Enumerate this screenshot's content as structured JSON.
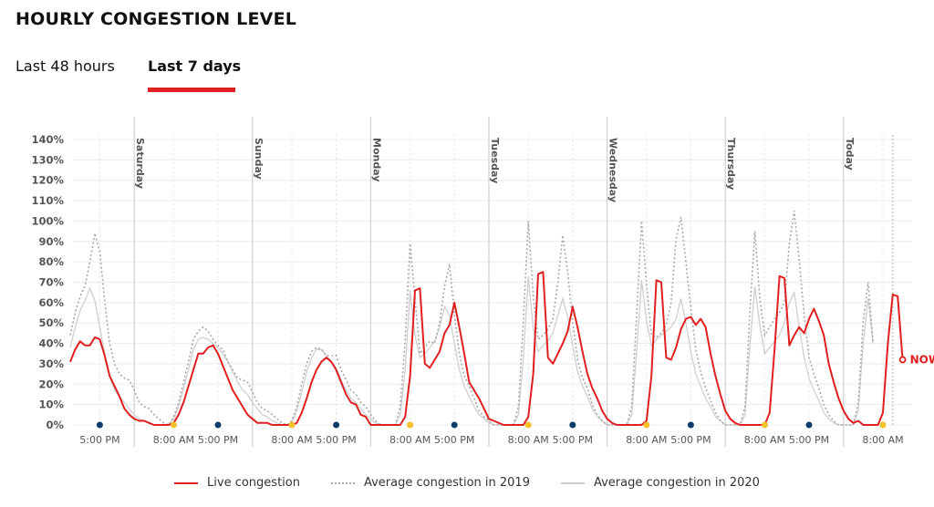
{
  "header": {
    "title": "HOURLY CONGESTION LEVEL"
  },
  "tabs": [
    {
      "label": "Last 48 hours",
      "selected": false
    },
    {
      "label": "Last 7 days",
      "selected": true
    }
  ],
  "colors": {
    "accent": "#e01f1f",
    "avg2019": "#a8a8a8",
    "avg2020": "#cfcfcf",
    "grid": "#ececec",
    "day_divider": "#d0d0d0",
    "morning_dot": "#f5c028",
    "evening_dot": "#0b3d6b"
  },
  "now_label": "NOW",
  "chart_data": {
    "type": "line",
    "title": "HOURLY CONGESTION LEVEL",
    "xlabel": "",
    "ylabel": "",
    "ylim": [
      0,
      140
    ],
    "y_ticks": [
      "0%",
      "10%",
      "20%",
      "30%",
      "40%",
      "50%",
      "60%",
      "70%",
      "80%",
      "90%",
      "100%",
      "110%",
      "120%",
      "130%",
      "140%"
    ],
    "x_unit": "hours since Friday 11:00",
    "x_range": [
      0,
      171
    ],
    "grid": true,
    "legend_position": "bottom-center",
    "day_dividers": [
      {
        "label": "Saturday",
        "hour": 13
      },
      {
        "label": "Sunday",
        "hour": 37
      },
      {
        "label": "Monday",
        "hour": 61
      },
      {
        "label": "Tuesday",
        "hour": 85
      },
      {
        "label": "Wednesday",
        "hour": 109
      },
      {
        "label": "Thursday",
        "hour": 133
      },
      {
        "label": "Today",
        "hour": 157
      }
    ],
    "x_tick_labels": [
      {
        "label": "5:00 PM",
        "hour": 6,
        "marker": "evening"
      },
      {
        "label": "8:00 AM",
        "hour": 21,
        "marker": "morning"
      },
      {
        "label": "5:00 PM",
        "hour": 30,
        "marker": "evening"
      },
      {
        "label": "8:00 AM",
        "hour": 45,
        "marker": "morning"
      },
      {
        "label": "5:00 PM",
        "hour": 54,
        "marker": "evening"
      },
      {
        "label": "8:00 AM",
        "hour": 69,
        "marker": "morning"
      },
      {
        "label": "5:00 PM",
        "hour": 78,
        "marker": "evening"
      },
      {
        "label": "8:00 AM",
        "hour": 93,
        "marker": "morning"
      },
      {
        "label": "5:00 PM",
        "hour": 102,
        "marker": "evening"
      },
      {
        "label": "8:00 AM",
        "hour": 117,
        "marker": "morning"
      },
      {
        "label": "5:00 PM",
        "hour": 126,
        "marker": "evening"
      },
      {
        "label": "8:00 AM",
        "hour": 141,
        "marker": "morning"
      },
      {
        "label": "5:00 PM",
        "hour": 150,
        "marker": "evening"
      },
      {
        "label": "8:00 AM",
        "hour": 165,
        "marker": "morning"
      }
    ],
    "now_hour": 167,
    "series": [
      {
        "name": "Live congestion",
        "key": "live",
        "values": [
          31,
          37,
          41,
          39,
          39,
          43,
          42,
          34,
          24,
          19,
          14,
          8,
          5,
          3,
          2,
          2,
          1,
          0,
          0,
          0,
          0,
          1,
          5,
          11,
          19,
          27,
          35,
          35,
          38,
          39,
          35,
          29,
          23,
          17,
          13,
          9,
          5,
          3,
          1,
          1,
          1,
          0,
          0,
          0,
          0,
          0,
          1,
          6,
          13,
          21,
          27,
          31,
          33,
          31,
          27,
          21,
          15,
          11,
          10,
          5,
          4,
          0,
          0,
          0,
          0,
          0,
          0,
          0,
          4,
          24,
          66,
          67,
          30,
          28,
          32,
          36,
          45,
          49,
          60,
          48,
          35,
          21,
          17,
          13,
          8,
          3,
          2,
          1,
          0,
          0,
          0,
          0,
          0,
          4,
          25,
          74,
          75,
          33,
          30,
          35,
          40,
          46,
          58,
          48,
          36,
          25,
          18,
          13,
          7,
          3,
          1,
          0,
          0,
          0,
          0,
          0,
          0,
          2,
          24,
          71,
          70,
          33,
          32,
          38,
          47,
          52,
          53,
          49,
          52,
          48,
          35,
          24,
          15,
          7,
          3,
          1,
          0,
          0,
          0,
          0,
          0,
          0,
          6,
          37,
          73,
          72,
          39,
          44,
          48,
          45,
          52,
          57,
          51,
          44,
          30,
          21,
          13,
          7,
          3,
          1,
          2,
          0,
          0,
          0,
          0,
          6,
          40,
          64,
          63,
          32
        ]
      },
      {
        "name": "Average congestion in 2019",
        "key": "avg2019",
        "values": [
          44,
          55,
          63,
          68,
          80,
          94,
          85,
          61,
          40,
          30,
          25,
          23,
          22,
          17,
          11,
          9,
          8,
          5,
          3,
          1,
          0,
          4,
          11,
          21,
          31,
          42,
          46,
          48,
          46,
          42,
          39,
          37,
          31,
          27,
          23,
          22,
          21,
          16,
          11,
          8,
          7,
          5,
          3,
          1,
          0,
          2,
          9,
          20,
          30,
          36,
          38,
          37,
          34,
          34,
          34,
          27,
          22,
          17,
          15,
          11,
          9,
          5,
          2,
          0,
          0,
          0,
          0,
          9,
          41,
          89,
          62,
          35,
          38,
          41,
          40,
          50,
          68,
          79,
          54,
          35,
          24,
          19,
          13,
          7,
          4,
          2,
          0,
          0,
          0,
          0,
          0,
          9,
          51,
          100,
          63,
          42,
          44,
          47,
          52,
          70,
          93,
          75,
          51,
          32,
          23,
          18,
          10,
          5,
          2,
          0,
          0,
          0,
          0,
          0,
          9,
          54,
          100,
          69,
          44,
          43,
          45,
          49,
          60,
          91,
          102,
          80,
          57,
          37,
          26,
          18,
          12,
          6,
          2,
          0,
          0,
          0,
          0,
          9,
          56,
          95,
          62,
          44,
          48,
          52,
          55,
          60,
          89,
          105,
          81,
          54,
          33,
          25,
          18,
          10,
          5,
          2,
          0,
          0,
          0,
          0,
          11,
          51,
          70,
          40
        ]
      },
      {
        "name": "Average congestion in 2020",
        "key": "avg2020",
        "values": [
          38,
          48,
          56,
          61,
          67,
          61,
          48,
          35,
          24,
          17,
          14,
          11,
          8,
          5,
          3,
          2,
          1,
          0,
          0,
          0,
          0,
          3,
          9,
          18,
          27,
          37,
          42,
          43,
          42,
          40,
          38,
          35,
          31,
          26,
          21,
          17,
          15,
          11,
          8,
          5,
          4,
          2,
          1,
          0,
          0,
          1,
          7,
          16,
          26,
          33,
          37,
          37,
          34,
          31,
          28,
          22,
          17,
          13,
          11,
          8,
          5,
          3,
          1,
          0,
          0,
          0,
          0,
          5,
          27,
          66,
          44,
          33,
          35,
          38,
          41,
          48,
          58,
          54,
          40,
          27,
          19,
          14,
          9,
          5,
          3,
          1,
          0,
          0,
          0,
          0,
          0,
          5,
          33,
          73,
          47,
          36,
          39,
          41,
          45,
          54,
          62,
          53,
          39,
          26,
          19,
          14,
          8,
          4,
          2,
          0,
          0,
          0,
          0,
          0,
          5,
          36,
          71,
          51,
          39,
          42,
          44,
          46,
          48,
          52,
          62,
          50,
          36,
          25,
          19,
          13,
          9,
          4,
          2,
          0,
          0,
          0,
          0,
          5,
          39,
          68,
          49,
          35,
          38,
          41,
          44,
          50,
          60,
          65,
          48,
          33,
          23,
          17,
          12,
          6,
          3,
          1,
          0,
          0,
          0,
          0,
          7,
          40,
          62,
          40
        ]
      }
    ]
  },
  "legend": [
    {
      "label": "Live congestion",
      "key": "live"
    },
    {
      "label": "Average congestion in 2019",
      "key": "avg2019"
    },
    {
      "label": "Average congestion in 2020",
      "key": "avg2020"
    }
  ]
}
